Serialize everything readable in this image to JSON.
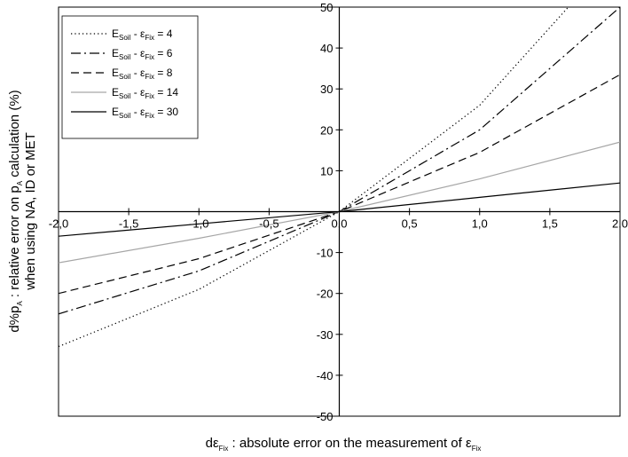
{
  "chart_data": {
    "type": "line",
    "xlabel": {
      "main": "dε",
      "sub": "Fix",
      "rest": " : absolute error on the measurement of ε",
      "sub2": "Fix"
    },
    "ylabel": {
      "line1": {
        "main": "d%p",
        "sub": "A",
        "rest": " : relative error on p",
        "sub2": "A",
        "rest2": " calculation (%)"
      },
      "line2": "when using NA, ID or MET"
    },
    "xlim": [
      -2.0,
      2.0
    ],
    "ylim": [
      -50,
      50
    ],
    "x_ticks": [
      "-2,0",
      "-1,5",
      "-1,0",
      "-0,5",
      "0,0",
      "0,5",
      "1,0",
      "1,5",
      "2,0"
    ],
    "y_ticks": [
      "-50",
      "-40",
      "-30",
      "-20",
      "-10",
      "0",
      "10",
      "20",
      "30",
      "40",
      "50"
    ],
    "grid": false,
    "legend_position": "top-left",
    "x": [
      -2.0,
      -1.0,
      0.0,
      1.0,
      2.0
    ],
    "series": [
      {
        "label": "E",
        "label_sub": "Soil",
        "label_mid": " - ε",
        "label_sub2": "Fix",
        "label_end": " = 4",
        "values": [
          -33,
          -19,
          0,
          26,
          64
        ],
        "color": "#000000",
        "dash": "dotted"
      },
      {
        "label": "E",
        "label_sub": "Soil",
        "label_mid": " - ε",
        "label_sub2": "Fix",
        "label_end": " = 6",
        "values": [
          -25,
          -14.5,
          0,
          20,
          50
        ],
        "color": "#000000",
        "dash": "dash-dot"
      },
      {
        "label": "E",
        "label_sub": "Soil",
        "label_mid": " - ε",
        "label_sub2": "Fix",
        "label_end": " = 8",
        "values": [
          -20,
          -11.5,
          0,
          14.5,
          33.5
        ],
        "color": "#000000",
        "dash": "dashed"
      },
      {
        "label": "E",
        "label_sub": "Soil",
        "label_mid": " - ε",
        "label_sub2": "Fix",
        "label_end": " = 14",
        "values": [
          -12.5,
          -6.5,
          0,
          8,
          17
        ],
        "color": "#a6a6a6",
        "dash": "solid"
      },
      {
        "label": "E",
        "label_sub": "Soil",
        "label_mid": " - ε",
        "label_sub2": "Fix",
        "label_end": " = 30",
        "values": [
          -6,
          -3,
          0,
          3.5,
          7
        ],
        "color": "#000000",
        "dash": "solid"
      }
    ]
  }
}
